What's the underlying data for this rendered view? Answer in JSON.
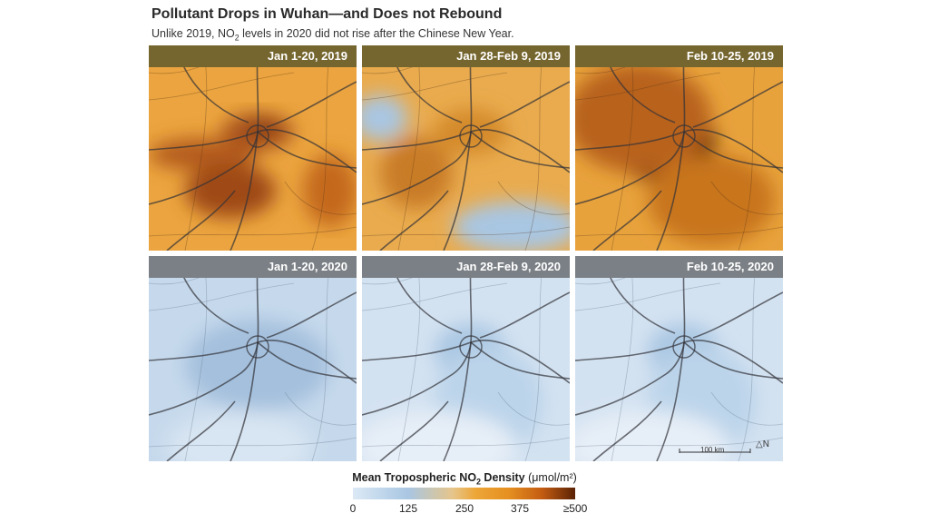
{
  "title": "Pollutant Drops in Wuhan—and Does not Rebound",
  "subtitle": {
    "before": "Unlike 2019, NO",
    "sub": "2",
    "after": " levels in 2020 did not rise after the Chinese New Year."
  },
  "panels": [
    {
      "label": "Jan 1-20, 2019",
      "year": 2019,
      "intensity": "high"
    },
    {
      "label": "Jan 28-Feb 9, 2019",
      "year": 2019,
      "intensity": "medium"
    },
    {
      "label": "Feb 10-25, 2019",
      "year": 2019,
      "intensity": "very-high"
    },
    {
      "label": "Jan 1-20, 2020",
      "year": 2020,
      "intensity": "low"
    },
    {
      "label": "Jan 28-Feb 9, 2020",
      "year": 2020,
      "intensity": "very-low"
    },
    {
      "label": "Feb 10-25, 2020",
      "year": 2020,
      "intensity": "very-low"
    }
  ],
  "legend": {
    "title_before": "Mean Tropospheric NO",
    "title_sub": "2",
    "title_after": " Density",
    "unit": "(μmol/m²)",
    "ticks": [
      "0",
      "125",
      "250",
      "375",
      "≥500"
    ],
    "colors": [
      "#dce9f5",
      "#a9c6e2",
      "#eda638",
      "#c45c12",
      "#5a2205"
    ]
  },
  "scale_bar": {
    "label": "100 km"
  },
  "north_arrow": {
    "label": "N"
  },
  "colors": {
    "header_2019": "#75652e",
    "header_2020": "#7b8086"
  }
}
